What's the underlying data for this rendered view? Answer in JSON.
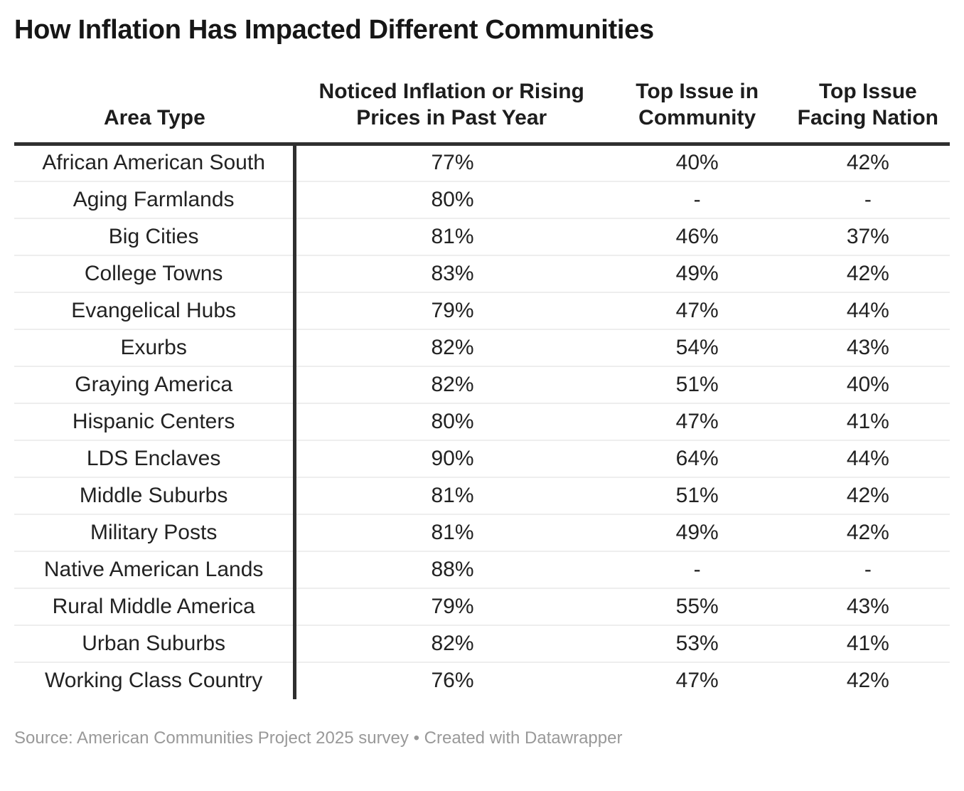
{
  "header": {
    "title": "How Inflation Has Impacted Different Communities"
  },
  "table": {
    "columns": [
      "Area Type",
      "Noticed Inflation or Rising Prices in Past Year",
      "Top Issue in Community",
      "Top Issue Facing Nation"
    ],
    "rows": [
      [
        "African American South",
        "77%",
        "40%",
        "42%"
      ],
      [
        "Aging Farmlands",
        "80%",
        "-",
        "-"
      ],
      [
        "Big Cities",
        "81%",
        "46%",
        "37%"
      ],
      [
        "College Towns",
        "83%",
        "49%",
        "42%"
      ],
      [
        "Evangelical Hubs",
        "79%",
        "47%",
        "44%"
      ],
      [
        "Exurbs",
        "82%",
        "54%",
        "43%"
      ],
      [
        "Graying America",
        "82%",
        "51%",
        "40%"
      ],
      [
        "Hispanic Centers",
        "80%",
        "47%",
        "41%"
      ],
      [
        "LDS Enclaves",
        "90%",
        "64%",
        "44%"
      ],
      [
        "Middle Suburbs",
        "81%",
        "51%",
        "42%"
      ],
      [
        "Military Posts",
        "81%",
        "49%",
        "42%"
      ],
      [
        "Native American Lands",
        "88%",
        "-",
        "-"
      ],
      [
        "Rural Middle America",
        "79%",
        "55%",
        "43%"
      ],
      [
        "Urban Suburbs",
        "82%",
        "53%",
        "41%"
      ],
      [
        "Working Class Country",
        "76%",
        "47%",
        "42%"
      ]
    ]
  },
  "footer": {
    "source": "Source: American Communities Project 2025 survey • Created with Datawrapper"
  },
  "colors": {
    "heavy_rule": "#2f2f2f",
    "row_line": "#eeeeee",
    "text": "#222222",
    "muted_text": "#999999"
  },
  "chart_data": {
    "type": "table",
    "title": "How Inflation Has Impacted Different Communities",
    "columns": [
      "Area Type",
      "Noticed Inflation or Rising Prices in Past Year",
      "Top Issue in Community",
      "Top Issue Facing Nation"
    ],
    "unit": "percent",
    "rows": [
      {
        "area_type": "African American South",
        "noticed_inflation_pct": 77,
        "top_issue_community_pct": 40,
        "top_issue_nation_pct": 42
      },
      {
        "area_type": "Aging Farmlands",
        "noticed_inflation_pct": 80,
        "top_issue_community_pct": null,
        "top_issue_nation_pct": null
      },
      {
        "area_type": "Big Cities",
        "noticed_inflation_pct": 81,
        "top_issue_community_pct": 46,
        "top_issue_nation_pct": 37
      },
      {
        "area_type": "College Towns",
        "noticed_inflation_pct": 83,
        "top_issue_community_pct": 49,
        "top_issue_nation_pct": 42
      },
      {
        "area_type": "Evangelical Hubs",
        "noticed_inflation_pct": 79,
        "top_issue_community_pct": 47,
        "top_issue_nation_pct": 44
      },
      {
        "area_type": "Exurbs",
        "noticed_inflation_pct": 82,
        "top_issue_community_pct": 54,
        "top_issue_nation_pct": 43
      },
      {
        "area_type": "Graying America",
        "noticed_inflation_pct": 82,
        "top_issue_community_pct": 51,
        "top_issue_nation_pct": 40
      },
      {
        "area_type": "Hispanic Centers",
        "noticed_inflation_pct": 80,
        "top_issue_community_pct": 47,
        "top_issue_nation_pct": 41
      },
      {
        "area_type": "LDS Enclaves",
        "noticed_inflation_pct": 90,
        "top_issue_community_pct": 64,
        "top_issue_nation_pct": 44
      },
      {
        "area_type": "Middle Suburbs",
        "noticed_inflation_pct": 81,
        "top_issue_community_pct": 51,
        "top_issue_nation_pct": 42
      },
      {
        "area_type": "Military Posts",
        "noticed_inflation_pct": 81,
        "top_issue_community_pct": 49,
        "top_issue_nation_pct": 42
      },
      {
        "area_type": "Native American Lands",
        "noticed_inflation_pct": 88,
        "top_issue_community_pct": null,
        "top_issue_nation_pct": null
      },
      {
        "area_type": "Rural Middle America",
        "noticed_inflation_pct": 79,
        "top_issue_community_pct": 55,
        "top_issue_nation_pct": 43
      },
      {
        "area_type": "Urban Suburbs",
        "noticed_inflation_pct": 82,
        "top_issue_community_pct": 53,
        "top_issue_nation_pct": 41
      },
      {
        "area_type": "Working Class Country",
        "noticed_inflation_pct": 76,
        "top_issue_community_pct": 47,
        "top_issue_nation_pct": 42
      }
    ],
    "missing_value_marker": "-",
    "source": "American Communities Project 2025 survey",
    "credit": "Created with Datawrapper"
  }
}
